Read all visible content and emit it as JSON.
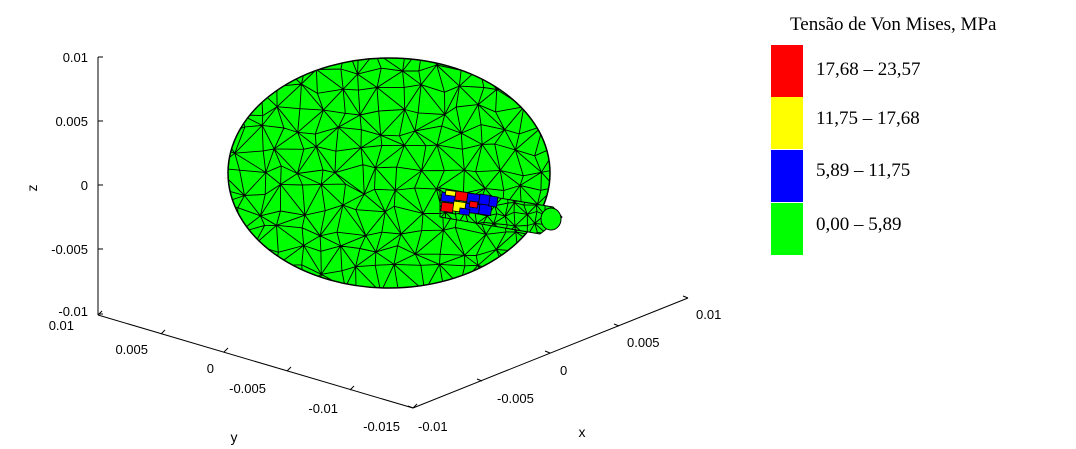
{
  "chart_data": {
    "type": "3d-surface",
    "axes": {
      "x": {
        "label": "x",
        "ticks": [
          "-0.01",
          "-0.005",
          "0",
          "0.005",
          "0.01"
        ],
        "range": [
          -0.01,
          0.01
        ]
      },
      "y": {
        "label": "y",
        "ticks": [
          "0.01",
          "0.005",
          "0",
          "-0.005",
          "-0.01",
          "-0.015"
        ],
        "range": [
          -0.015,
          0.01
        ]
      },
      "z": {
        "label": "z",
        "ticks": [
          "0.01",
          "0.005",
          "0",
          "-0.005",
          "-0.01"
        ],
        "range": [
          -0.01,
          0.01
        ]
      }
    },
    "legend": {
      "title": "Tensão de Von Mises, MPa",
      "placement": "right",
      "items": [
        {
          "label": "17,68 – 23,57",
          "color": "#ff0000",
          "min": 17.68,
          "max": 23.57
        },
        {
          "label": "11,75 – 17,68",
          "color": "#ffff00",
          "min": 11.75,
          "max": 17.68
        },
        {
          "label": "5,89 – 11,75",
          "color": "#0000ff",
          "min": 5.89,
          "max": 11.75
        },
        {
          "label": "0,00 – 5,89",
          "color": "#00ff00",
          "min": 0.0,
          "max": 5.89
        }
      ]
    },
    "mesh": {
      "body": "ellipsoid with cylindrical arm",
      "dominant_color": "#00ff00",
      "edge_color": "#000000"
    }
  }
}
